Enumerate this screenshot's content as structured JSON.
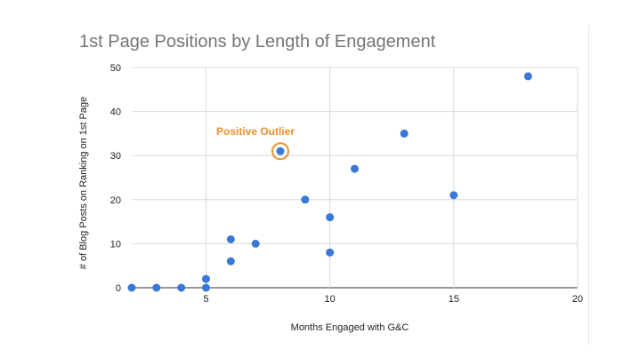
{
  "chart_data": {
    "type": "scatter",
    "title": "1st Page Positions by Length of Engagement",
    "xlabel": "Months Engaged with G&C",
    "ylabel": "# of Blog Posts on Ranking on 1st Page",
    "xlim": [
      2,
      20
    ],
    "ylim": [
      0,
      50
    ],
    "x_ticks": [
      5,
      10,
      15,
      20
    ],
    "y_ticks": [
      0,
      10,
      20,
      30,
      40,
      50
    ],
    "grid": "on",
    "legend": "none",
    "point_color": "#3a78d8",
    "points": [
      {
        "x": 2,
        "y": 0
      },
      {
        "x": 3,
        "y": 0
      },
      {
        "x": 4,
        "y": 0
      },
      {
        "x": 5,
        "y": 0
      },
      {
        "x": 5,
        "y": 2
      },
      {
        "x": 6,
        "y": 6
      },
      {
        "x": 6,
        "y": 11
      },
      {
        "x": 7,
        "y": 10
      },
      {
        "x": 8,
        "y": 31
      },
      {
        "x": 9,
        "y": 20
      },
      {
        "x": 10,
        "y": 8
      },
      {
        "x": 10,
        "y": 16
      },
      {
        "x": 11,
        "y": 27
      },
      {
        "x": 13,
        "y": 35
      },
      {
        "x": 15,
        "y": 21
      },
      {
        "x": 18,
        "y": 48
      }
    ],
    "annotation": {
      "text": "Positive Outlier",
      "x": 8,
      "y": 31,
      "color": "#e8922f"
    }
  }
}
